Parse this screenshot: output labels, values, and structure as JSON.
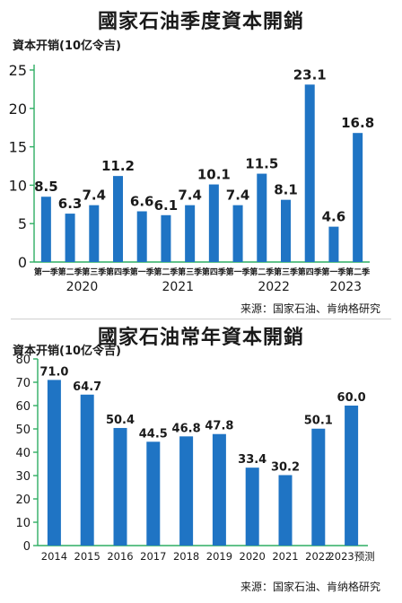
{
  "chart_data": [
    {
      "type": "bar",
      "title": "國家石油季度資本開銷",
      "ylabel": "資本开销(10亿令吉)",
      "ylim": [
        0,
        25
      ],
      "yticks": [
        0,
        5,
        10,
        15,
        20,
        25
      ],
      "categories": [
        "第一季",
        "第二季",
        "第三季",
        "第四季",
        "第一季",
        "第二季",
        "第三季",
        "第四季",
        "第一季",
        "第二季",
        "第三季",
        "第四季",
        "第一季",
        "第二季"
      ],
      "years": [
        {
          "label": "2020",
          "start": 0,
          "end": 3
        },
        {
          "label": "2021",
          "start": 4,
          "end": 7
        },
        {
          "label": "2022",
          "start": 8,
          "end": 11
        },
        {
          "label": "2023",
          "start": 12,
          "end": 13
        }
      ],
      "values": [
        8.5,
        6.3,
        7.4,
        11.2,
        6.6,
        6.1,
        7.4,
        10.1,
        7.4,
        11.5,
        8.1,
        23.1,
        4.6,
        16.8
      ],
      "value_labels": [
        "8.5",
        "6.3",
        "7.4",
        "11.2",
        "6.6",
        "6.1",
        "7.4",
        "10.1",
        "7.4",
        "11.5",
        "8.1",
        "23.1",
        "4.6",
        "16.8"
      ],
      "source": "来源：国家石油、肯纳格研究",
      "grid": false
    },
    {
      "type": "bar",
      "title": "國家石油常年資本開銷",
      "ylabel": "資本开销(10亿令吉)",
      "ylim": [
        0,
        80
      ],
      "yticks": [
        0,
        10,
        20,
        30,
        40,
        50,
        60,
        70,
        80
      ],
      "categories": [
        "2014",
        "2015",
        "2016",
        "2017",
        "2018",
        "2019",
        "2020",
        "2021",
        "2022",
        "2023预测"
      ],
      "values": [
        71.0,
        64.7,
        50.4,
        44.5,
        46.8,
        47.8,
        33.4,
        30.2,
        50.1,
        60.0
      ],
      "value_labels": [
        "71.0",
        "64.7",
        "50.4",
        "44.5",
        "46.8",
        "47.8",
        "33.4",
        "30.2",
        "50.1",
        "60.0"
      ],
      "source": "来源：国家石油、肯纳格研究",
      "grid": false
    }
  ],
  "colors": {
    "bar": "#1f74c4",
    "axis": "#2fae63",
    "text": "#1a1a1a"
  }
}
